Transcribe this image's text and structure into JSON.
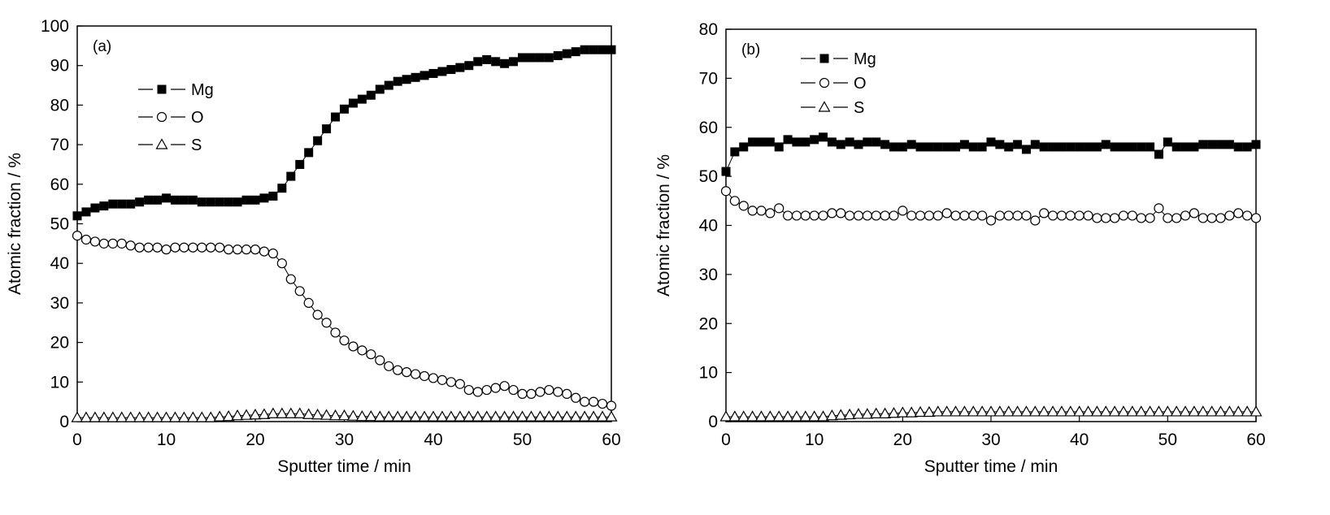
{
  "chart_data": [
    {
      "type": "scatter",
      "panel_label": "(a)",
      "xlabel": "Sputter time / min",
      "ylabel": "Atomic fraction / %",
      "xlim": [
        0,
        60
      ],
      "ylim": [
        0,
        100
      ],
      "xticks": [
        "0",
        "10",
        "20",
        "30",
        "40",
        "50",
        "60"
      ],
      "yticks": [
        "0",
        "10",
        "20",
        "30",
        "40",
        "50",
        "60",
        "70",
        "80",
        "90",
        "100"
      ],
      "legend_position": "upper-left",
      "series": [
        {
          "name": "Mg",
          "marker": "filled-square",
          "x": [
            0,
            1,
            2,
            3,
            4,
            5,
            6,
            7,
            8,
            9,
            10,
            11,
            12,
            13,
            14,
            15,
            16,
            17,
            18,
            19,
            20,
            21,
            22,
            23,
            24,
            25,
            26,
            27,
            28,
            29,
            30,
            31,
            32,
            33,
            34,
            35,
            36,
            37,
            38,
            39,
            40,
            41,
            42,
            43,
            44,
            45,
            46,
            47,
            48,
            49,
            50,
            51,
            52,
            53,
            54,
            55,
            56,
            57,
            58,
            59,
            60
          ],
          "y": [
            52,
            53,
            54,
            54.5,
            55,
            55,
            55,
            55.5,
            56,
            56,
            56.5,
            56,
            56,
            56,
            55.5,
            55.5,
            55.5,
            55.5,
            55.5,
            56,
            56,
            56.5,
            57,
            59,
            62,
            65,
            68,
            71,
            74,
            77,
            79,
            80.5,
            81.5,
            82.5,
            84,
            85,
            86,
            86.5,
            87,
            87.5,
            88,
            88.5,
            89,
            89.5,
            90,
            91,
            91.5,
            91,
            90.5,
            91,
            92,
            92,
            92,
            92,
            92.5,
            93,
            93.5,
            94,
            94,
            94,
            94
          ]
        },
        {
          "name": "O",
          "marker": "open-circle",
          "x": [
            0,
            1,
            2,
            3,
            4,
            5,
            6,
            7,
            8,
            9,
            10,
            11,
            12,
            13,
            14,
            15,
            16,
            17,
            18,
            19,
            20,
            21,
            22,
            23,
            24,
            25,
            26,
            27,
            28,
            29,
            30,
            31,
            32,
            33,
            34,
            35,
            36,
            37,
            38,
            39,
            40,
            41,
            42,
            43,
            44,
            45,
            46,
            47,
            48,
            49,
            50,
            51,
            52,
            53,
            54,
            55,
            56,
            57,
            58,
            59,
            60
          ],
          "y": [
            47,
            46,
            45.5,
            45,
            45,
            45,
            44.5,
            44,
            44,
            44,
            43.5,
            44,
            44,
            44,
            44,
            44,
            44,
            43.5,
            43.5,
            43.5,
            43.5,
            43,
            42.5,
            40,
            36,
            33,
            30,
            27,
            25,
            22.5,
            20.5,
            19,
            18,
            17,
            15.5,
            14,
            13,
            12.5,
            12,
            11.5,
            11,
            10.5,
            10,
            9.5,
            8,
            7.5,
            8,
            8.5,
            9,
            8,
            7,
            7,
            7.5,
            8,
            7.5,
            7,
            6,
            5,
            5,
            4.5,
            4
          ]
        },
        {
          "name": "S",
          "marker": "open-triangle",
          "x": [
            0,
            1,
            2,
            3,
            4,
            5,
            6,
            7,
            8,
            9,
            10,
            11,
            12,
            13,
            14,
            15,
            16,
            17,
            18,
            19,
            20,
            21,
            22,
            23,
            24,
            25,
            26,
            27,
            28,
            29,
            30,
            31,
            32,
            33,
            34,
            35,
            36,
            37,
            38,
            39,
            40,
            41,
            42,
            43,
            44,
            45,
            46,
            47,
            48,
            49,
            50,
            51,
            52,
            53,
            54,
            55,
            56,
            57,
            58,
            59,
            60
          ],
          "y": [
            1,
            1,
            1,
            1,
            1,
            1,
            1,
            1,
            1,
            1,
            1,
            1,
            1,
            1,
            1,
            1,
            1.2,
            1.3,
            1.5,
            1.6,
            1.7,
            1.8,
            2,
            2,
            2,
            2,
            1.8,
            1.7,
            1.6,
            1.5,
            1.5,
            1.4,
            1.3,
            1.3,
            1.2,
            1.2,
            1.2,
            1.2,
            1.2,
            1.2,
            1.2,
            1.2,
            1.2,
            1.2,
            1.2,
            1.2,
            1.2,
            1.2,
            1.2,
            1.2,
            1.2,
            1.2,
            1.2,
            1.2,
            1.2,
            1.2,
            1.2,
            1.2,
            1.2,
            1.2,
            1.2
          ]
        }
      ]
    },
    {
      "type": "scatter",
      "panel_label": "(b)",
      "xlabel": "Sputter time / min",
      "ylabel": "Atomic fraction / %",
      "xlim": [
        0,
        60
      ],
      "ylim": [
        0,
        80
      ],
      "xticks": [
        "0",
        "10",
        "20",
        "30",
        "40",
        "50",
        "60"
      ],
      "yticks": [
        "0",
        "10",
        "20",
        "30",
        "40",
        "50",
        "60",
        "70",
        "80"
      ],
      "legend_position": "upper-left",
      "series": [
        {
          "name": "Mg",
          "marker": "filled-square",
          "x": [
            0,
            1,
            2,
            3,
            4,
            5,
            6,
            7,
            8,
            9,
            10,
            11,
            12,
            13,
            14,
            15,
            16,
            17,
            18,
            19,
            20,
            21,
            22,
            23,
            24,
            25,
            26,
            27,
            28,
            29,
            30,
            31,
            32,
            33,
            34,
            35,
            36,
            37,
            38,
            39,
            40,
            41,
            42,
            43,
            44,
            45,
            46,
            47,
            48,
            49,
            50,
            51,
            52,
            53,
            54,
            55,
            56,
            57,
            58,
            59,
            60
          ],
          "y": [
            51,
            55,
            56,
            57,
            57,
            57,
            56,
            57.5,
            57,
            57,
            57.5,
            58,
            57,
            56.5,
            57,
            56.5,
            57,
            57,
            56.5,
            56,
            56,
            56.5,
            56,
            56,
            56,
            56,
            56,
            56.5,
            56,
            56,
            57,
            56.5,
            56,
            56.5,
            55.5,
            56.5,
            56,
            56,
            56,
            56,
            56,
            56,
            56,
            56.5,
            56,
            56,
            56,
            56,
            56,
            54.5,
            57,
            56,
            56,
            56,
            56.5,
            56.5,
            56.5,
            56.5,
            56,
            56,
            56.5
          ]
        },
        {
          "name": "O",
          "marker": "open-circle",
          "x": [
            0,
            1,
            2,
            3,
            4,
            5,
            6,
            7,
            8,
            9,
            10,
            11,
            12,
            13,
            14,
            15,
            16,
            17,
            18,
            19,
            20,
            21,
            22,
            23,
            24,
            25,
            26,
            27,
            28,
            29,
            30,
            31,
            32,
            33,
            34,
            35,
            36,
            37,
            38,
            39,
            40,
            41,
            42,
            43,
            44,
            45,
            46,
            47,
            48,
            49,
            50,
            51,
            52,
            53,
            54,
            55,
            56,
            57,
            58,
            59,
            60
          ],
          "y": [
            47,
            45,
            44,
            43,
            43,
            42.5,
            43.5,
            42,
            42,
            42,
            42,
            42,
            42.5,
            42.5,
            42,
            42,
            42,
            42,
            42,
            42,
            43,
            42,
            42,
            42,
            42,
            42.5,
            42,
            42,
            42,
            42,
            41,
            42,
            42,
            42,
            42,
            41,
            42.5,
            42,
            42,
            42,
            42,
            42,
            41.5,
            41.5,
            41.5,
            42,
            42,
            41.5,
            41.5,
            43.5,
            41.5,
            41.5,
            42,
            42.5,
            41.5,
            41.5,
            41.5,
            42,
            42.5,
            42,
            41.5
          ]
        },
        {
          "name": "S",
          "marker": "open-triangle",
          "x": [
            0,
            1,
            2,
            3,
            4,
            5,
            6,
            7,
            8,
            9,
            10,
            11,
            12,
            13,
            14,
            15,
            16,
            17,
            18,
            19,
            20,
            21,
            22,
            23,
            24,
            25,
            26,
            27,
            28,
            29,
            30,
            31,
            32,
            33,
            34,
            35,
            36,
            37,
            38,
            39,
            40,
            41,
            42,
            43,
            44,
            45,
            46,
            47,
            48,
            49,
            50,
            51,
            52,
            53,
            54,
            55,
            56,
            57,
            58,
            59,
            60
          ],
          "y": [
            1,
            1,
            1,
            1,
            1,
            1,
            1,
            1,
            1,
            1,
            1,
            1,
            1.2,
            1.3,
            1.4,
            1.5,
            1.5,
            1.6,
            1.6,
            1.7,
            1.8,
            1.8,
            1.9,
            1.9,
            2,
            2,
            2,
            2,
            2,
            2,
            2,
            2,
            2,
            2,
            2,
            2,
            2,
            2,
            2,
            2,
            2,
            2,
            2,
            2,
            2,
            2,
            2,
            2,
            2,
            2,
            2,
            2,
            2,
            2,
            2,
            2,
            2,
            2,
            2,
            2,
            2
          ]
        }
      ]
    }
  ]
}
